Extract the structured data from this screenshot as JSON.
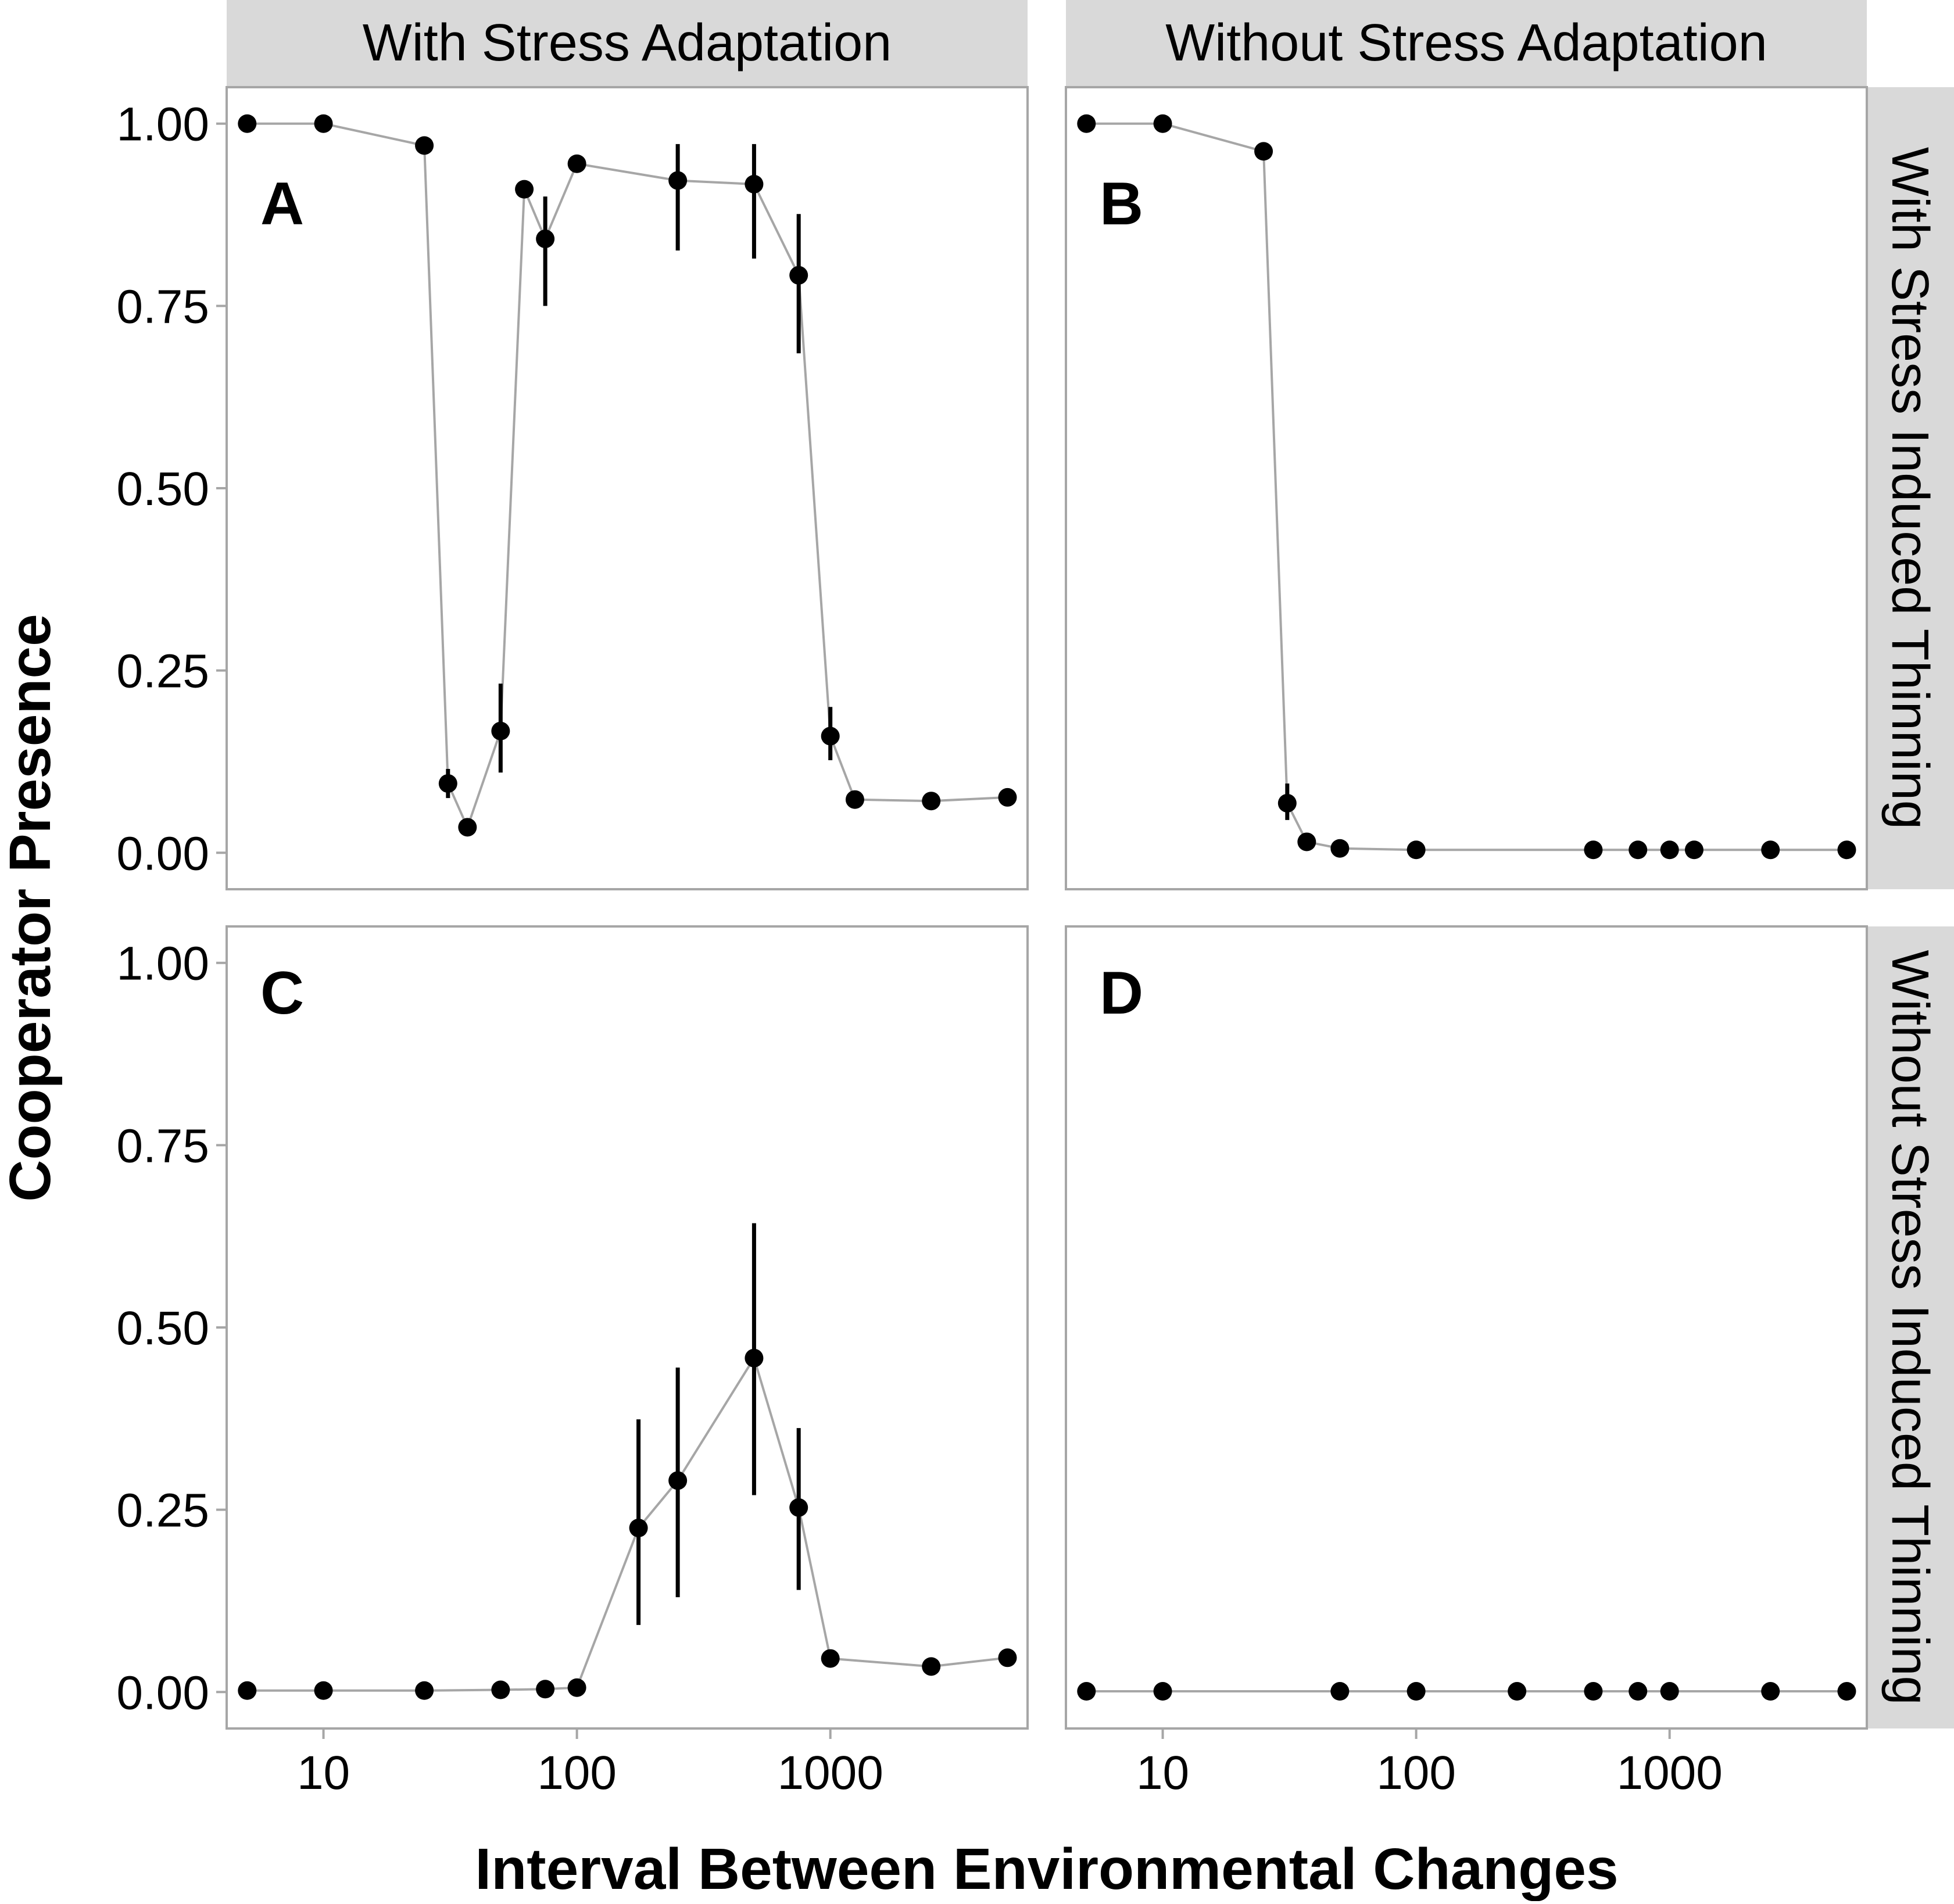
{
  "colors": {
    "background": "#ffffff",
    "strip_fill": "#d9d9d9",
    "panel_border": "#a6a6a6",
    "line": "#a6a6a6",
    "points": "#000000",
    "error_bars": "#000000"
  },
  "chart_data": {
    "type": "scatter",
    "layout": "2x2 faceted grid, shared axes",
    "line_connects_points": true,
    "xlabel": "Interval Between Environmental Changes",
    "ylabel": "Cooperator Presence",
    "x_scale": "log10",
    "xlim": [
      4.15,
      6000
    ],
    "ylim": [
      -0.05,
      1.05
    ],
    "x_ticks": [
      10,
      100,
      1000
    ],
    "x_tick_labels": [
      "10",
      "100",
      "1000"
    ],
    "y_ticks": [
      0,
      0.25,
      0.5,
      0.75,
      1.0
    ],
    "y_tick_labels": [
      "0.00",
      "0.25",
      "0.50",
      "0.75",
      "1.00"
    ],
    "grid": false,
    "legend": "none",
    "column_strips": [
      "With Stress Adaptation",
      "Without Stress Adaptation"
    ],
    "row_strips": [
      "With Stress Induced Thinning",
      "Without Stress Induced Thinning"
    ],
    "panels": [
      {
        "tag": "A",
        "points": [
          {
            "x": 5,
            "y": 1.0
          },
          {
            "x": 10,
            "y": 1.0
          },
          {
            "x": 25,
            "y": 0.97
          },
          {
            "x": 31,
            "y": 0.095,
            "ymin": 0.075,
            "ymax": 0.115
          },
          {
            "x": 37,
            "y": 0.035
          },
          {
            "x": 50,
            "y": 0.167,
            "ymin": 0.11,
            "ymax": 0.232
          },
          {
            "x": 62,
            "y": 0.91
          },
          {
            "x": 75,
            "y": 0.842,
            "ymin": 0.75,
            "ymax": 0.9
          },
          {
            "x": 100,
            "y": 0.945
          },
          {
            "x": 250,
            "y": 0.922,
            "ymin": 0.826,
            "ymax": 0.972
          },
          {
            "x": 500,
            "y": 0.917,
            "ymin": 0.815,
            "ymax": 0.972
          },
          {
            "x": 750,
            "y": 0.792,
            "ymin": 0.685,
            "ymax": 0.876
          },
          {
            "x": 1000,
            "y": 0.16,
            "ymin": 0.127,
            "ymax": 0.2
          },
          {
            "x": 1250,
            "y": 0.073
          },
          {
            "x": 2500,
            "y": 0.071
          },
          {
            "x": 5000,
            "y": 0.076
          }
        ]
      },
      {
        "tag": "B",
        "points": [
          {
            "x": 5,
            "y": 1.0
          },
          {
            "x": 10,
            "y": 1.0
          },
          {
            "x": 25,
            "y": 0.962
          },
          {
            "x": 31,
            "y": 0.068,
            "ymin": 0.045,
            "ymax": 0.095
          },
          {
            "x": 37,
            "y": 0.015
          },
          {
            "x": 50,
            "y": 0.006
          },
          {
            "x": 100,
            "y": 0.004
          },
          {
            "x": 500,
            "y": 0.004
          },
          {
            "x": 750,
            "y": 0.004
          },
          {
            "x": 1000,
            "y": 0.004
          },
          {
            "x": 1250,
            "y": 0.004
          },
          {
            "x": 2500,
            "y": 0.004
          },
          {
            "x": 5000,
            "y": 0.004
          }
        ]
      },
      {
        "tag": "C",
        "points": [
          {
            "x": 5,
            "y": 0.002
          },
          {
            "x": 10,
            "y": 0.002
          },
          {
            "x": 25,
            "y": 0.002
          },
          {
            "x": 50,
            "y": 0.003
          },
          {
            "x": 75,
            "y": 0.004
          },
          {
            "x": 100,
            "y": 0.006
          },
          {
            "x": 175,
            "y": 0.225,
            "ymin": 0.092,
            "ymax": 0.374
          },
          {
            "x": 250,
            "y": 0.29,
            "ymin": 0.13,
            "ymax": 0.445
          },
          {
            "x": 500,
            "y": 0.458,
            "ymin": 0.27,
            "ymax": 0.643
          },
          {
            "x": 750,
            "y": 0.253,
            "ymin": 0.14,
            "ymax": 0.362
          },
          {
            "x": 1000,
            "y": 0.046
          },
          {
            "x": 2500,
            "y": 0.035
          },
          {
            "x": 5000,
            "y": 0.047
          }
        ]
      },
      {
        "tag": "D",
        "points": [
          {
            "x": 5,
            "y": 0.001
          },
          {
            "x": 10,
            "y": 0.001
          },
          {
            "x": 50,
            "y": 0.001
          },
          {
            "x": 100,
            "y": 0.001
          },
          {
            "x": 250,
            "y": 0.001
          },
          {
            "x": 500,
            "y": 0.001
          },
          {
            "x": 750,
            "y": 0.001
          },
          {
            "x": 1000,
            "y": 0.001
          },
          {
            "x": 2500,
            "y": 0.001
          },
          {
            "x": 5000,
            "y": 0.001
          }
        ]
      }
    ]
  }
}
